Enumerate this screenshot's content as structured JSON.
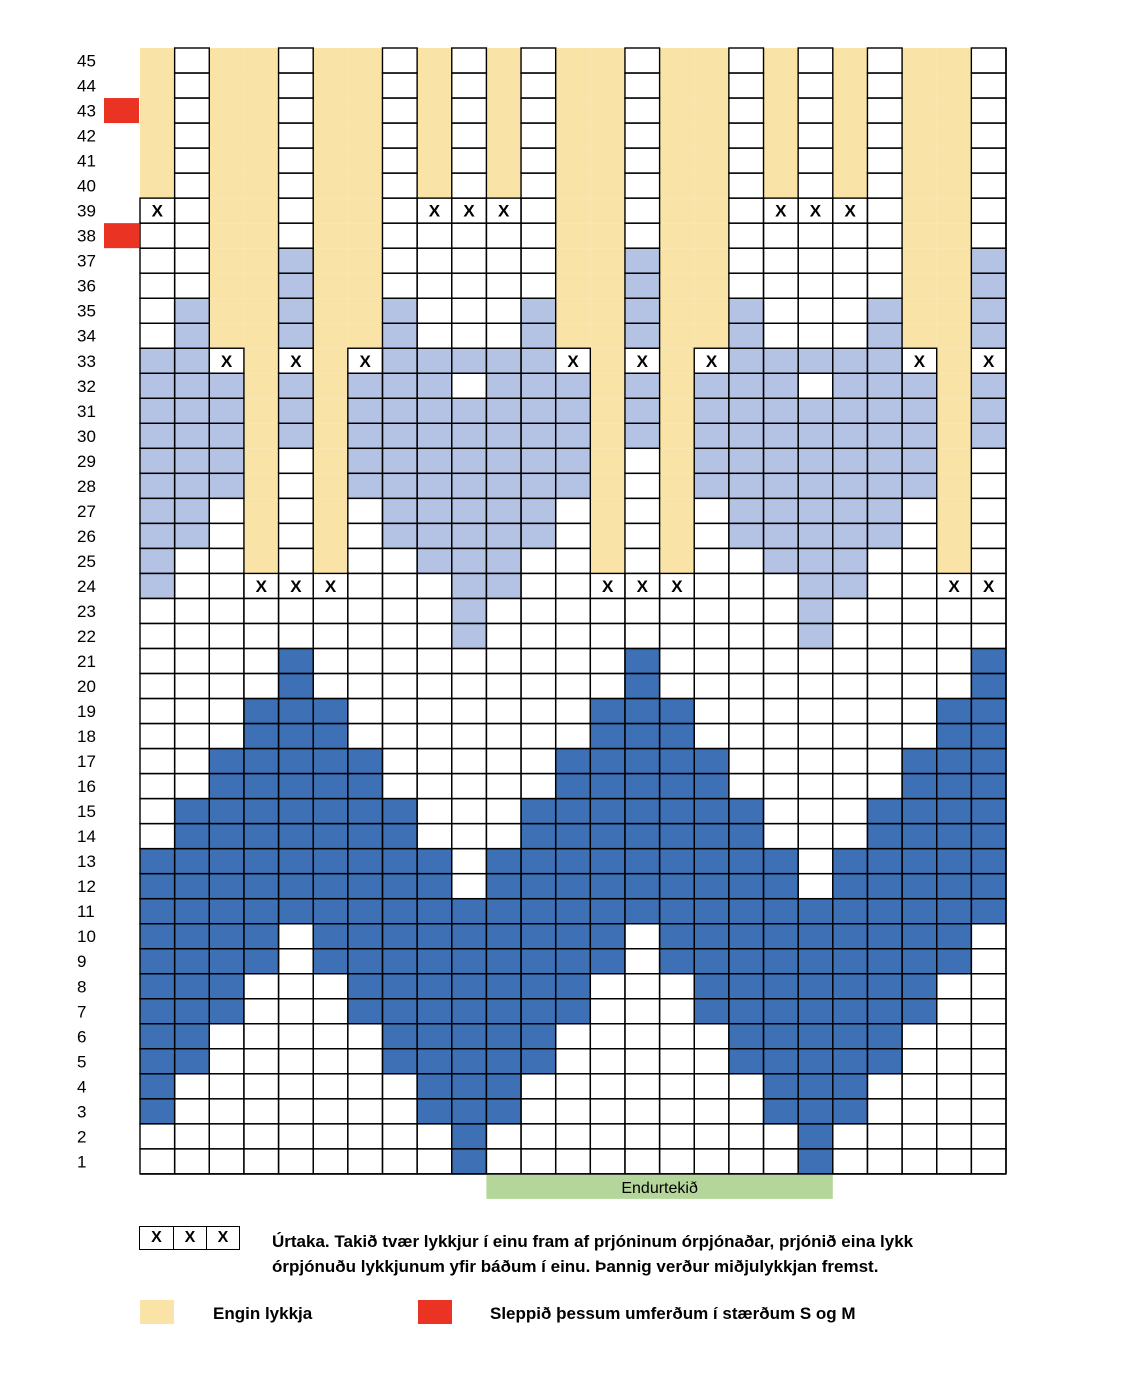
{
  "colors": {
    "none": "#FAE3A6",
    "light": "#B4C3E4",
    "dark": "#3E70B5",
    "white": "#FFFFFF",
    "skip": "#EA3323",
    "repeat": "#B5D69A",
    "grid": "#000000"
  },
  "grid": {
    "columns": 25,
    "rows": 45,
    "row_labels": [
      45,
      44,
      43,
      42,
      41,
      40,
      39,
      38,
      37,
      36,
      35,
      34,
      33,
      32,
      31,
      30,
      29,
      28,
      27,
      26,
      25,
      24,
      23,
      22,
      21,
      20,
      19,
      18,
      17,
      16,
      15,
      14,
      13,
      12,
      11,
      10,
      9,
      8,
      7,
      6,
      5,
      4,
      3,
      2,
      1
    ],
    "skip_rows": [
      43,
      38
    ],
    "repeat_columns": [
      11,
      20
    ],
    "legend_keys": "N = engin lykkja, L = ljósblár, D = dökkblár, W = hvítur, X = úrtaka",
    "cells": [
      "NWNNWNNWNWNWNNWNNWNWNWNNW",
      "NWNNWNNWNWNWNNWNNWNWNWNNW",
      "NWNNWNNWNWNWNNWNNWNWNWNNW",
      "NWNNWNNWNWNWNNWNNWNWNWNNW",
      "NWNNWNNWNWNWNNWNNWNWNWNNW",
      "NWNNWNNWNWNWNNWNNWNWNWNNW",
      "XWNNWNNWXXXWNNWNNWXXXWNNW",
      "WWNNWNNWWWWWNNWNNWWWWWNNW",
      "WWNNLNNWWWWWNNLNNWWWWWNNL",
      "WWNNLNNWWWWWNNLNNWWWWWNNL",
      "WLNNLNNLWWWLNNLNNLWWWLNNL",
      "WLNNLNNLWWWLNNLNNLWWWLNNL",
      "LLXNXNXLLLLLXNXNXLLLLLXNX",
      "LLLNLNLLLWLLLNLNLLLWLLLNL",
      "LLLNLNLLLLLLLNLNLLLLLLLNL",
      "LLLNLNLLLLLLLNLNLLLLLLLNL",
      "LLLNWNLLLLLLLNWNLLLLLLLNW",
      "LLLNWNLLLLLLLNWNLLLLLLLNW",
      "LLWNWNWLLLLLWNWNWLLLLLWNW",
      "LLWNWNWLLLLLWNWNWLLLLLWNW",
      "LWWNWNWWLLLWWNWNWWLLLWWNW",
      "LWWXXXWWWLLWWXXXWWWLLWWXX",
      "WWWWWWWWWLWWWWWWWWWLWWWWW",
      "WWWWWWWWWLWWWWWWWWWLWWWWW",
      "WWWWDWWWWWWWWWDWWWWWWWWWD",
      "WWWWDWWWWWWWWWDWWWWWWWWWD",
      "WWWDDDWWWWWWWDDDWWWWWWWDD",
      "WWWDDDWWWWWWWDDDWWWWWWWDD",
      "WWDDDDDWWWWWDDDDDWWWWWDDD",
      "WWDDDDDWWWWWDDDDDWWWWWDDD",
      "WDDDDDDDWWWDDDDDDDWWWDDDD",
      "WDDDDDDDWWWDDDDDDDWWWDDDD",
      "DDDDDDDDDWDDDDDDDDDWDDDDD",
      "DDDDDDDDDWDDDDDDDDDWDDDDD",
      "DDDDDDDDDDDDDDDDDDDDDDDDD",
      "DDDDWDDDDDDDDDWDDDDDDDDDW",
      "DDDDWDDDDDDDDDWDDDDDDDDDW",
      "DDDWWWDDDDDDDWWWDDDDDDDWW",
      "DDDWWWDDDDDDDWWWDDDDDDDWW",
      "DDWWWWWDDDDDWWWWWDDDDDWWW",
      "DDWWWWWDDDDDWWWWWDDDDDWWW",
      "DWWWWWWWDDDWWWWWWWDDDWWWW",
      "DWWWWWWWDDDWWWWWWWDDDWWWW",
      "WWWWWWWWWDWWWWWWWWWDWWWWW",
      "WWWWWWWWWDWWWWWWWWWDWWWWW"
    ]
  },
  "labels": {
    "x_mark": "X",
    "repeat": "Endurtekið"
  },
  "legend": {
    "x_cells": [
      "X",
      "X",
      "X"
    ],
    "x_text_line1": "Úrtaka. Takið tvær lykkjur í einu fram af prjóninum órpjónaðar, prjónið eina lykk",
    "x_text_line2": "órpjónuðu lykkjunum yfir báðum í einu. Þannig verður miðjulykkjan fremst.",
    "none_text": "Engin lykkja",
    "skip_text": "Sleppið þessum umferðum í stærðum S og M"
  }
}
